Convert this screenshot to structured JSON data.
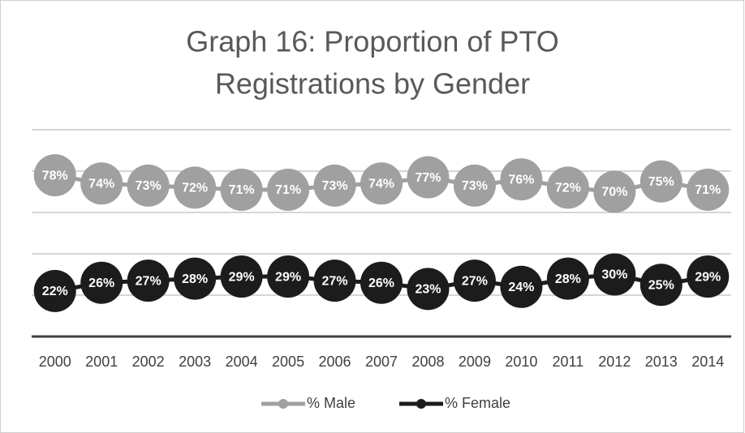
{
  "chart_data": {
    "type": "line",
    "title": [
      "Graph 16: Proportion of PTO",
      "Registrations by Gender"
    ],
    "categories": [
      "2000",
      "2001",
      "2002",
      "2003",
      "2004",
      "2005",
      "2006",
      "2007",
      "2008",
      "2009",
      "2010",
      "2011",
      "2012",
      "2013",
      "2014"
    ],
    "series": [
      {
        "name": "% Male",
        "color": "#a0a0a0",
        "values": [
          78,
          74,
          73,
          72,
          71,
          71,
          73,
          74,
          77,
          73,
          76,
          72,
          70,
          75,
          71
        ],
        "value_labels": [
          "78%",
          "74%",
          "73%",
          "72%",
          "71%",
          "71%",
          "73%",
          "74%",
          "77%",
          "73%",
          "76%",
          "72%",
          "70%",
          "75%",
          "71%"
        ]
      },
      {
        "name": "% Female",
        "color": "#1c1c1c",
        "values": [
          22,
          26,
          27,
          28,
          29,
          29,
          27,
          26,
          23,
          27,
          24,
          28,
          30,
          25,
          29
        ],
        "value_labels": [
          "22%",
          "26%",
          "27%",
          "28%",
          "29%",
          "29%",
          "27%",
          "26%",
          "23%",
          "27%",
          "24%",
          "28%",
          "30%",
          "25%",
          "29%"
        ]
      }
    ],
    "ylim": [
      0,
      100
    ],
    "yticks": [
      0,
      20,
      40,
      60,
      80,
      100
    ],
    "grid": true,
    "legend": "bottom"
  }
}
